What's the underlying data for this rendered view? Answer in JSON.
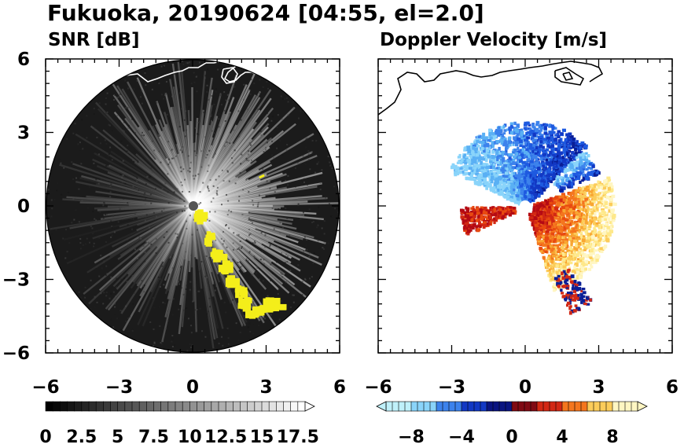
{
  "title": "Fukuoka, 20190624 [04:55, el=2.0]",
  "colors": {
    "snr_echo": "#f4ee1a",
    "coastline": "#ffffff",
    "coastline_right": "#000000",
    "blue_strong": "#0a1a9a",
    "red_strong": "#d21414",
    "light_yellow": "#fff4a8"
  },
  "chart_data": [
    {
      "type": "heatmap",
      "title": "SNR [dB]",
      "xlim": [
        -6,
        6
      ],
      "ylim": [
        -6,
        6
      ],
      "x_ticks": [
        "−6",
        "−3",
        "0",
        "3",
        "6"
      ],
      "y_ticks": [
        "6",
        "3",
        "0",
        "−3",
        "−6"
      ],
      "colorbar": {
        "min": 0,
        "max": 18,
        "step": 0.5,
        "tick_labels": [
          "0",
          "2.5",
          "5",
          "7.5",
          "10",
          "12.5",
          "15",
          "17.5"
        ],
        "tick_values": [
          0,
          2.5,
          5,
          7.5,
          10,
          12.5,
          15,
          17.5
        ],
        "extend": "max"
      }
    },
    {
      "type": "heatmap",
      "title": "Doppler Velocity [m/s]",
      "xlim": [
        -6,
        6
      ],
      "ylim": [
        -6,
        6
      ],
      "x_ticks": [
        "−6",
        "−3",
        "0",
        "3",
        "6"
      ],
      "colorbar": {
        "min": -10,
        "max": 10,
        "step": 0.5,
        "tick_labels": [
          "−8",
          "−4",
          "0",
          "4",
          "8"
        ],
        "tick_values": [
          -8,
          -4,
          0,
          4,
          8
        ],
        "extend": "both"
      }
    }
  ]
}
